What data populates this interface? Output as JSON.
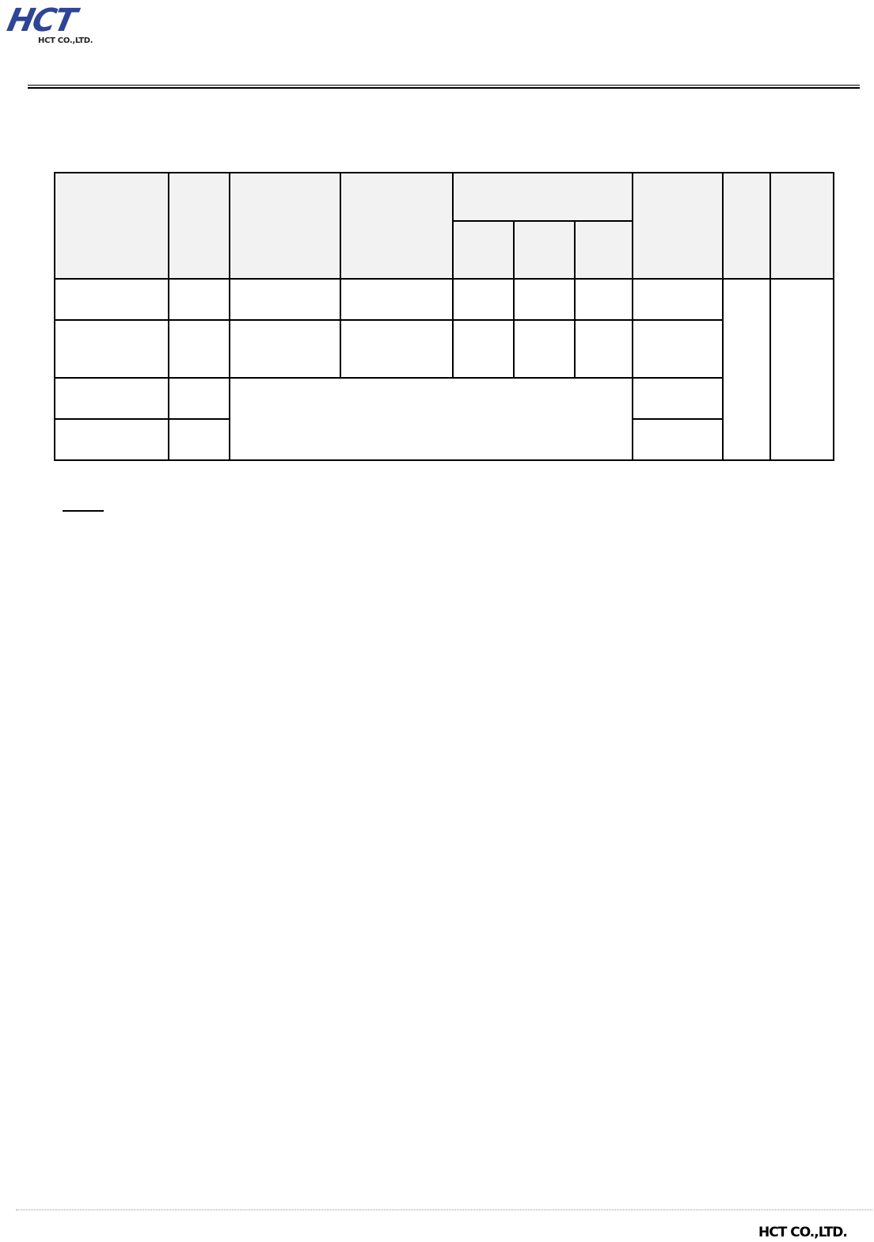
{
  "header": {
    "logo_mark": "HCT",
    "logo_company": "HCT CO.,LTD."
  },
  "table": {
    "header_fill": "#f2f2f2",
    "cells_text": "empty"
  },
  "footer": {
    "company": "HCT CO.,LTD."
  }
}
